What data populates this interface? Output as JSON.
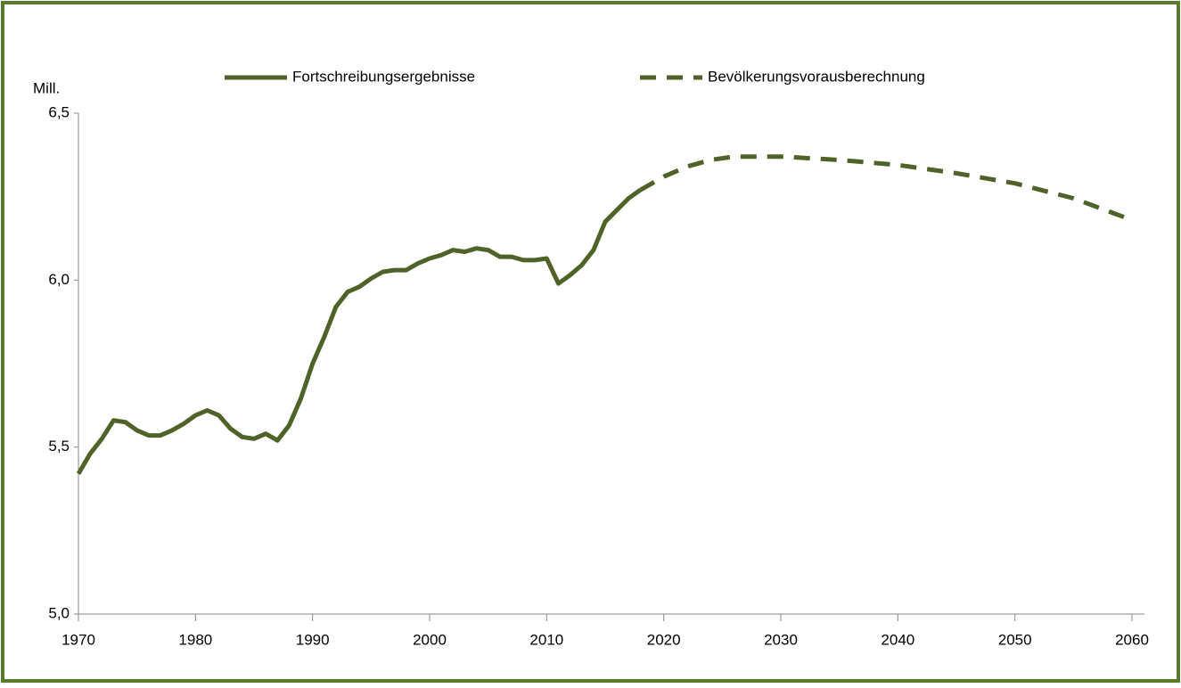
{
  "chart_data": {
    "type": "line",
    "y_label": "Mill.",
    "ylim": [
      5.0,
      6.5
    ],
    "yticks": [
      {
        "value": 5.0,
        "label": "5,0"
      },
      {
        "value": 5.5,
        "label": "5,5"
      },
      {
        "value": 6.0,
        "label": "6,0"
      },
      {
        "value": 6.5,
        "label": "6,5"
      }
    ],
    "xlim": [
      1970,
      2060
    ],
    "xticks": [
      1970,
      1980,
      1990,
      2000,
      2010,
      2020,
      2030,
      2040,
      2050,
      2060
    ],
    "legend": "top",
    "series": [
      {
        "name": "Fortschreibungsergebnisse",
        "color": "#4f6228",
        "style": "solid",
        "x": [
          1970,
          1971,
          1972,
          1973,
          1974,
          1975,
          1976,
          1977,
          1978,
          1979,
          1980,
          1981,
          1982,
          1983,
          1984,
          1985,
          1986,
          1987,
          1988,
          1989,
          1990,
          1991,
          1992,
          1993,
          1994,
          1995,
          1996,
          1997,
          1998,
          1999,
          2000,
          2001,
          2002,
          2003,
          2004,
          2005,
          2006,
          2007,
          2008,
          2009,
          2010,
          2011,
          2012,
          2013,
          2014,
          2015,
          2016,
          2017,
          2018
        ],
        "values": [
          5.42,
          5.48,
          5.525,
          5.58,
          5.575,
          5.55,
          5.535,
          5.535,
          5.55,
          5.57,
          5.595,
          5.61,
          5.595,
          5.555,
          5.53,
          5.525,
          5.54,
          5.52,
          5.565,
          5.645,
          5.75,
          5.83,
          5.92,
          5.965,
          5.98,
          6.005,
          6.025,
          6.03,
          6.03,
          6.05,
          6.065,
          6.075,
          6.09,
          6.085,
          6.095,
          6.09,
          6.07,
          6.07,
          6.06,
          6.06,
          6.065,
          5.99,
          6.015,
          6.045,
          6.09,
          6.175,
          6.21,
          6.245,
          6.27
        ]
      },
      {
        "name": "Bevölkerungsvorausberechnung",
        "color": "#4f6228",
        "style": "dashed",
        "x": [
          2018,
          2020,
          2022,
          2024,
          2026,
          2028,
          2030,
          2035,
          2040,
          2045,
          2050,
          2055,
          2060
        ],
        "values": [
          6.27,
          6.31,
          6.34,
          6.36,
          6.37,
          6.37,
          6.37,
          6.36,
          6.345,
          6.32,
          6.29,
          6.245,
          6.18
        ]
      }
    ]
  }
}
